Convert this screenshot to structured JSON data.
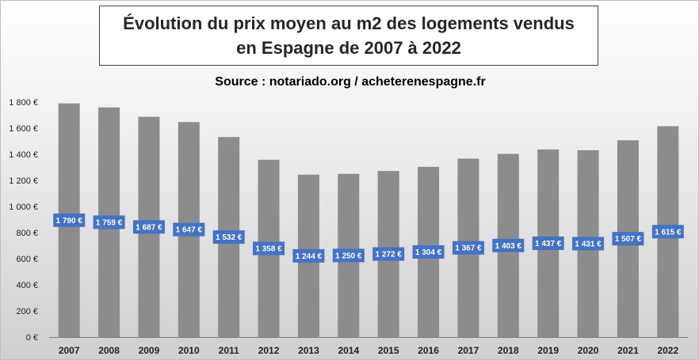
{
  "chart_data": {
    "type": "bar",
    "title_lines": [
      "Évolution du prix moyen au m2 des logements vendus",
      "en Espagne de 2007 à 2022"
    ],
    "subtitle": "Source : notariado.org / acheterenespagne.fr",
    "categories": [
      "2007",
      "2008",
      "2009",
      "2010",
      "2011",
      "2012",
      "2013",
      "2014",
      "2015",
      "2016",
      "2017",
      "2018",
      "2019",
      "2020",
      "2021",
      "2022"
    ],
    "values": [
      1790,
      1759,
      1687,
      1647,
      1532,
      1358,
      1244,
      1250,
      1272,
      1304,
      1367,
      1403,
      1437,
      1431,
      1507,
      1615
    ],
    "data_labels": [
      "1 790 €",
      "1 759 €",
      "1 687 €",
      "1 647 €",
      "1 532 €",
      "1 358 €",
      "1 244 €",
      "1 250 €",
      "1 272 €",
      "1 304 €",
      "1 367 €",
      "1 403 €",
      "1 437 €",
      "1 431 €",
      "1 507 €",
      "1 615 €"
    ],
    "y_ticks": [
      0,
      200,
      400,
      600,
      800,
      1000,
      1200,
      1400,
      1600,
      1800
    ],
    "y_tick_labels": [
      "0 €",
      "200 €",
      "400 €",
      "600 €",
      "800 €",
      "1 000 €",
      "1 200 €",
      "1 400 €",
      "1 600 €",
      "1 800 €"
    ],
    "ylim": [
      0,
      1800
    ],
    "xlabel": "",
    "ylabel": "",
    "grid": false,
    "legend": "none",
    "colors": {
      "bar": "#8c8c8c",
      "label_box": "#4472c4",
      "label_text": "#ffffff"
    }
  }
}
